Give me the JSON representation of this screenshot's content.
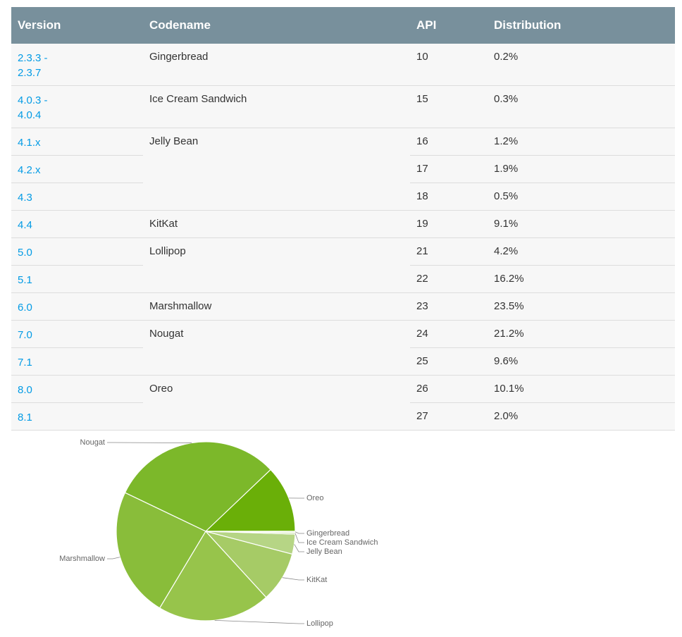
{
  "table": {
    "header": [
      "Version",
      "Codename",
      "API",
      "Distribution"
    ],
    "groups": [
      {
        "codename": "Gingerbread",
        "rows": [
          {
            "version": "2.3.3 - 2.3.7",
            "api": 10,
            "distribution": "0.2%"
          }
        ]
      },
      {
        "codename": "Ice Cream Sandwich",
        "rows": [
          {
            "version": "4.0.3 - 4.0.4",
            "api": 15,
            "distribution": "0.3%"
          }
        ]
      },
      {
        "codename": "Jelly Bean",
        "rows": [
          {
            "version": "4.1.x",
            "api": 16,
            "distribution": "1.2%"
          },
          {
            "version": "4.2.x",
            "api": 17,
            "distribution": "1.9%"
          },
          {
            "version": "4.3",
            "api": 18,
            "distribution": "0.5%"
          }
        ]
      },
      {
        "codename": "KitKat",
        "rows": [
          {
            "version": "4.4",
            "api": 19,
            "distribution": "9.1%"
          }
        ]
      },
      {
        "codename": "Lollipop",
        "rows": [
          {
            "version": "5.0",
            "api": 21,
            "distribution": "4.2%"
          },
          {
            "version": "5.1",
            "api": 22,
            "distribution": "16.2%"
          }
        ]
      },
      {
        "codename": "Marshmallow",
        "rows": [
          {
            "version": "6.0",
            "api": 23,
            "distribution": "23.5%"
          }
        ]
      },
      {
        "codename": "Nougat",
        "rows": [
          {
            "version": "7.0",
            "api": 24,
            "distribution": "21.2%"
          },
          {
            "version": "7.1",
            "api": 25,
            "distribution": "9.6%"
          }
        ]
      },
      {
        "codename": "Oreo",
        "rows": [
          {
            "version": "8.0",
            "api": 26,
            "distribution": "10.1%"
          },
          {
            "version": "8.1",
            "api": 27,
            "distribution": "2.0%"
          }
        ]
      }
    ]
  },
  "chart_data": {
    "type": "pie",
    "categories": [
      "Oreo",
      "Nougat",
      "Marshmallow",
      "Lollipop",
      "KitKat",
      "Jelly Bean",
      "Ice Cream Sandwich",
      "Gingerbread"
    ],
    "values": [
      12.1,
      30.8,
      23.5,
      20.4,
      9.1,
      3.6,
      0.3,
      0.2
    ],
    "colors": [
      "#6aaf08",
      "#7cb82a",
      "#89bd3a",
      "#97c44b",
      "#a6cb66",
      "#b6d585",
      "#c5de9f",
      "#d4e6b8"
    ]
  }
}
